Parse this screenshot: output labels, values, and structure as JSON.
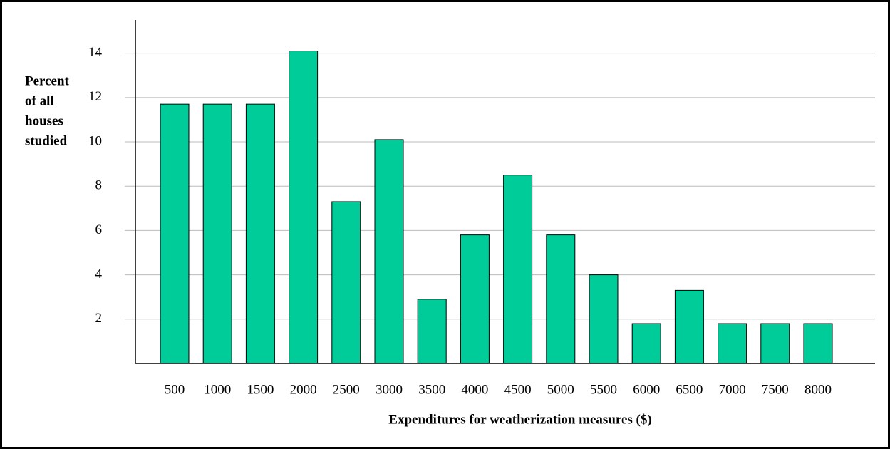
{
  "chart_data": {
    "type": "bar",
    "y_label": [
      "Percent",
      "of all",
      "houses",
      "studied"
    ],
    "x_label": "Expenditures for weatherization measures ($)",
    "categories": [
      "500",
      "1000",
      "1500",
      "2000",
      "2500",
      "3000",
      "3500",
      "4000",
      "4500",
      "5000",
      "5500",
      "6000",
      "6500",
      "7000",
      "7500",
      "8000"
    ],
    "values": [
      11.7,
      11.7,
      11.7,
      14.1,
      7.3,
      10.1,
      2.9,
      5.8,
      8.5,
      5.8,
      4.0,
      1.8,
      3.3,
      1.8,
      1.8,
      1.8
    ],
    "color": "#00cc99",
    "ylim": [
      0,
      15.5
    ],
    "yticks": [
      2,
      4,
      6,
      8,
      10,
      12,
      14
    ],
    "grid": true
  }
}
